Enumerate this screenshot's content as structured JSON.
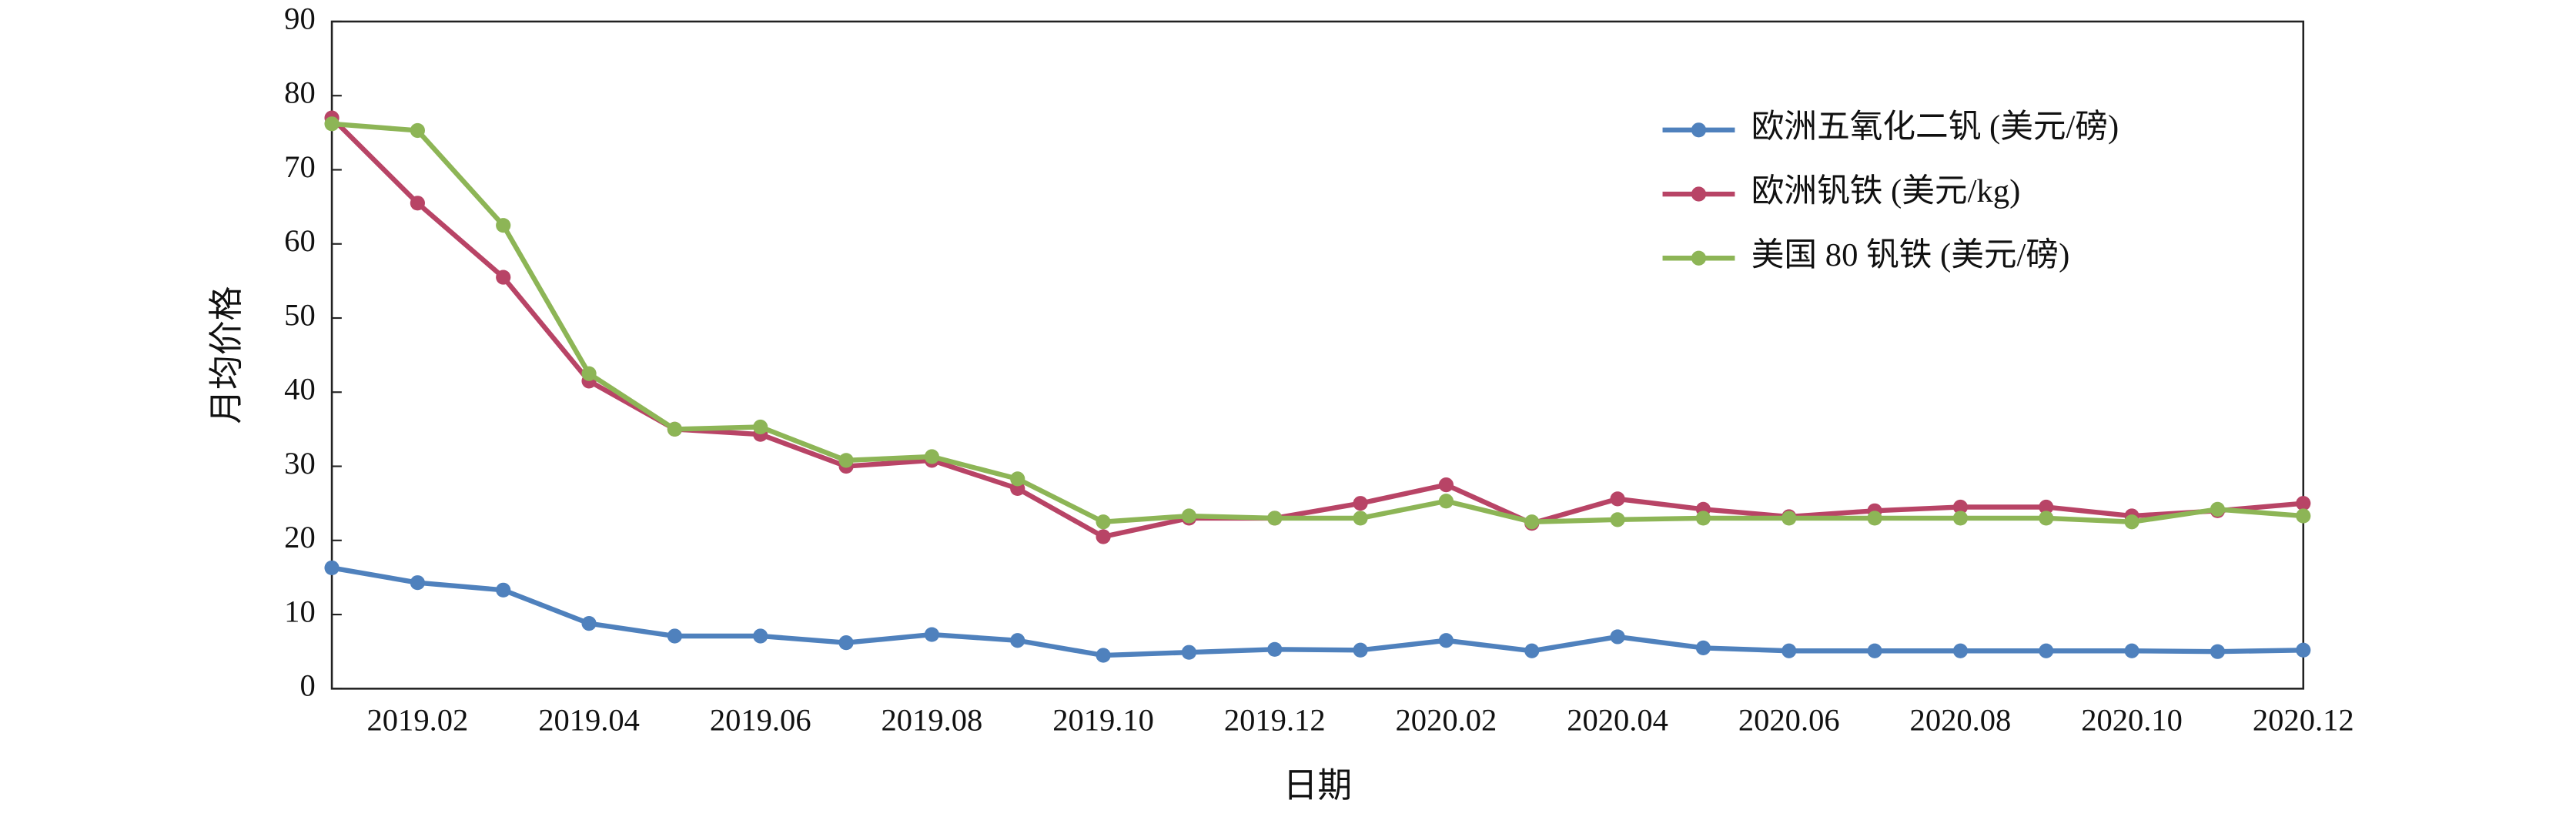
{
  "chart_data": {
    "type": "line",
    "xlabel": "日期",
    "ylabel": "月均价格",
    "categories": [
      null,
      "2019.02",
      null,
      "2019.04",
      null,
      "2019.06",
      null,
      "2019.08",
      null,
      "2019.10",
      null,
      "2019.12",
      null,
      "2020.02",
      null,
      "2020.04",
      null,
      "2020.06",
      null,
      "2020.08",
      null,
      "2020.10",
      null,
      "2020.12"
    ],
    "series": [
      {
        "name": "欧洲五氧化二钒 (美元/磅)",
        "color": "#4f81bd",
        "values": [
          16.3,
          14.3,
          13.3,
          8.8,
          7.1,
          7.1,
          6.2,
          7.3,
          6.5,
          4.5,
          4.9,
          5.3,
          5.2,
          6.5,
          5.1,
          7.0,
          5.5,
          5.1,
          5.1,
          5.1,
          5.1,
          5.1,
          5.0,
          5.2
        ]
      },
      {
        "name": "欧洲钒铁 (美元/kg)",
        "color": "#b84466",
        "values": [
          77,
          65.5,
          55.5,
          41.5,
          35,
          34.3,
          30,
          30.8,
          27,
          20.5,
          23,
          23,
          25,
          27.5,
          22.3,
          25.6,
          24.2,
          23.2,
          24,
          24.5,
          24.5,
          23.3,
          24,
          25
        ]
      },
      {
        "name": "美国 80 钒铁 (美元/磅)",
        "color": "#8db556",
        "values": [
          76.2,
          75.3,
          62.5,
          42.5,
          35,
          35.3,
          30.8,
          31.3,
          28.3,
          22.5,
          23.3,
          23,
          23,
          25.3,
          22.5,
          22.8,
          23,
          23,
          23,
          23,
          23,
          22.5,
          24.2,
          23.3
        ]
      }
    ],
    "ylim": [
      0,
      90
    ],
    "yticks": [
      0,
      10,
      20,
      30,
      40,
      50,
      60,
      70,
      80,
      90
    ],
    "legend": "upper right"
  }
}
